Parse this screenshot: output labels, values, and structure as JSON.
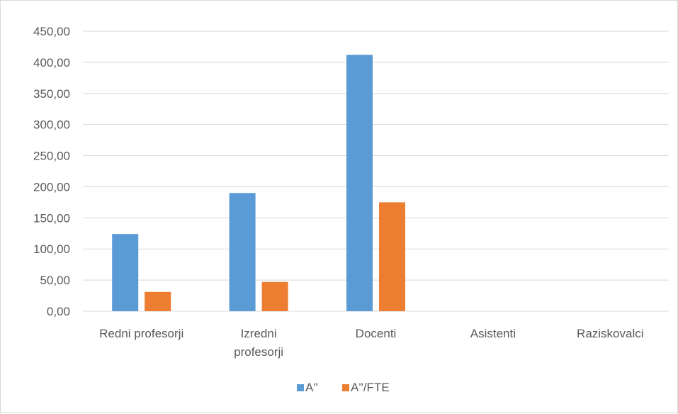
{
  "chart_data": {
    "type": "bar",
    "categories": [
      [
        "Redni profesorji"
      ],
      [
        "Izredni",
        "profesorji"
      ],
      [
        "Docenti"
      ],
      [
        "Asistenti"
      ],
      [
        "Raziskovalci"
      ]
    ],
    "series": [
      {
        "name": "A''",
        "color": "#5b9bd5",
        "values": [
          124,
          190,
          412,
          0,
          0
        ]
      },
      {
        "name": "A''/FTE",
        "color": "#ed7d31",
        "values": [
          31,
          47,
          175,
          0,
          0
        ]
      }
    ],
    "yticks": [
      "0,00",
      "50,00",
      "100,00",
      "150,00",
      "200,00",
      "250,00",
      "300,00",
      "350,00",
      "400,00",
      "450,00"
    ],
    "ylim": [
      0,
      450
    ],
    "grid": true,
    "legend_position": "bottom"
  }
}
